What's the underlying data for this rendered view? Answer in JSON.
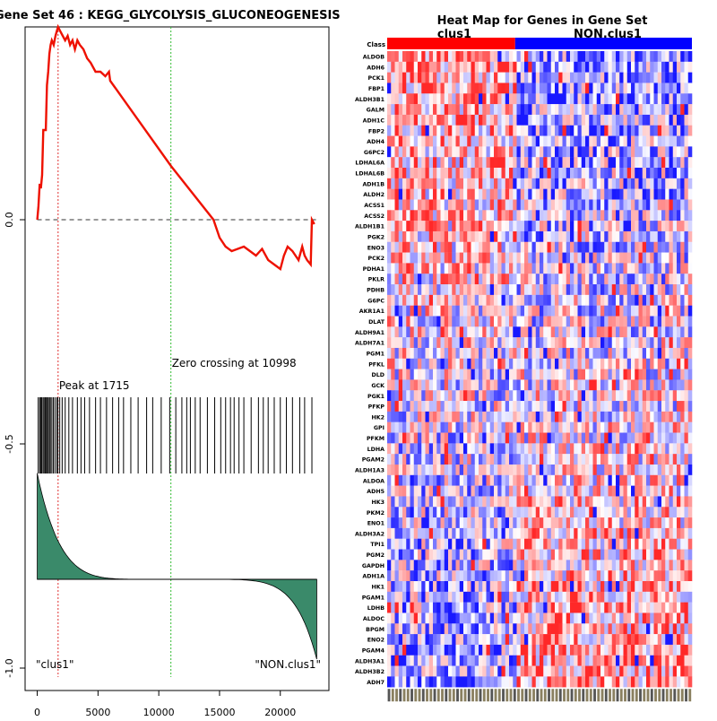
{
  "left_title": "Gene Set  46 : KEGG_GLYCOLYSIS_GLUCONEOGENESIS",
  "heatmap_title": "Heat Map for Genes in Gene Set",
  "colors": {
    "es_line": "#ee1100",
    "peak_line": "#e03030",
    "zero_cross_line": "#33bb33",
    "metric_fill": "#3a8a6a",
    "class1_bar": "#ff0000",
    "class2_bar": "#0000ff"
  },
  "chart_data": [
    {
      "type": "line",
      "title": "Gene Set  46 : KEGG_GLYCOLYSIS_GLUCONEOGENESIS",
      "xlabel": "",
      "ylabel": "",
      "xlim": [
        -1000,
        24000
      ],
      "ylim": [
        -1.05,
        0.43
      ],
      "x_ticks": [
        0,
        5000,
        10000,
        15000,
        20000
      ],
      "y_ticks": [
        0.0,
        -0.5,
        -1.0
      ],
      "y_tick_labels": [
        "0.0",
        "-0.5",
        "-1.0"
      ],
      "grid": false,
      "es_curve": {
        "x": [
          0,
          100,
          200,
          300,
          400,
          500,
          700,
          800,
          900,
          1000,
          1100,
          1200,
          1350,
          1500,
          1600,
          1715,
          1900,
          2100,
          2300,
          2500,
          2700,
          2900,
          3100,
          3300,
          3500,
          3800,
          4100,
          4400,
          4800,
          5200,
          5600,
          5900,
          6000,
          10998,
          14500,
          15000,
          15500,
          16000,
          16500,
          17000,
          17500,
          18000,
          18500,
          19000,
          19500,
          20000,
          20300,
          20600,
          21000,
          21500,
          21800,
          22000,
          22200,
          22500,
          22600,
          22800
        ],
        "y": [
          0.0,
          0.03,
          0.08,
          0.07,
          0.1,
          0.2,
          0.2,
          0.3,
          0.33,
          0.37,
          0.39,
          0.4,
          0.39,
          0.41,
          0.42,
          0.43,
          0.42,
          0.41,
          0.4,
          0.41,
          0.39,
          0.4,
          0.38,
          0.4,
          0.39,
          0.38,
          0.36,
          0.35,
          0.33,
          0.33,
          0.32,
          0.33,
          0.31,
          0.12,
          0.0,
          -0.04,
          -0.06,
          -0.07,
          -0.065,
          -0.06,
          -0.07,
          -0.08,
          -0.065,
          -0.09,
          -0.1,
          -0.11,
          -0.08,
          -0.06,
          -0.07,
          -0.09,
          -0.06,
          -0.08,
          -0.09,
          -0.1,
          0.0,
          -0.01
        ]
      },
      "baseline_y": 0.0,
      "peak": {
        "x": 1715,
        "label": "Peak at 1715"
      },
      "zero_crossing": {
        "x": 10998,
        "label": "Zero crossing at 10998"
      },
      "hit_positions": [
        80,
        200,
        280,
        360,
        470,
        560,
        650,
        720,
        820,
        900,
        1000,
        1080,
        1200,
        1320,
        1450,
        1600,
        1700,
        1850,
        2050,
        2300,
        2600,
        2900,
        3300,
        3600,
        3900,
        4300,
        4800,
        5200,
        5700,
        6200,
        6700,
        7100,
        7700,
        8300,
        9000,
        9500,
        10200,
        10900,
        11400,
        11900,
        12300,
        12600,
        13000,
        13400,
        14000,
        14600,
        15100,
        15500,
        15900,
        16200,
        16600,
        17000,
        17600,
        18200,
        18600,
        19000,
        19500,
        20000,
        20500,
        21000,
        21600,
        22000,
        22600
      ],
      "class_labels": [
        "\"clus1\"",
        "\"NON.clus1\""
      ]
    },
    {
      "type": "heatmap",
      "title": "Heat Map for Genes in Gene Set",
      "class_header_label": "Class",
      "classes": [
        "clus1",
        "NON.clus1"
      ],
      "class_split_fraction": 0.42,
      "n_samples": 80,
      "genes": [
        "ALDOB",
        "ADH6",
        "PCK1",
        "FBP1",
        "ALDH3B1",
        "GALM",
        "ADH1C",
        "FBP2",
        "ADH4",
        "G6PC2",
        "LDHAL6A",
        "LDHAL6B",
        "ADH1B",
        "ALDH2",
        "ACSS1",
        "ACSS2",
        "ALDH1B1",
        "PGK2",
        "ENO3",
        "PCK2",
        "PDHA1",
        "PKLR",
        "PDHB",
        "G6PC",
        "AKR1A1",
        "DLAT",
        "ALDH9A1",
        "ALDH7A1",
        "PGM1",
        "PFKL",
        "DLD",
        "GCK",
        "PGK1",
        "PFKP",
        "HK2",
        "GPI",
        "PFKM",
        "LDHA",
        "PGAM2",
        "ALDH1A3",
        "ALDOA",
        "ADH5",
        "HK3",
        "PKM2",
        "ENO1",
        "ALDH3A2",
        "TPI1",
        "PGM2",
        "GAPDH",
        "ADH1A",
        "HK1",
        "PGAM1",
        "LDHB",
        "ALDOC",
        "BPGM",
        "ENO2",
        "PGAM4",
        "ALDH3A1",
        "ALDH3B2",
        "ADH7"
      ]
    }
  ]
}
